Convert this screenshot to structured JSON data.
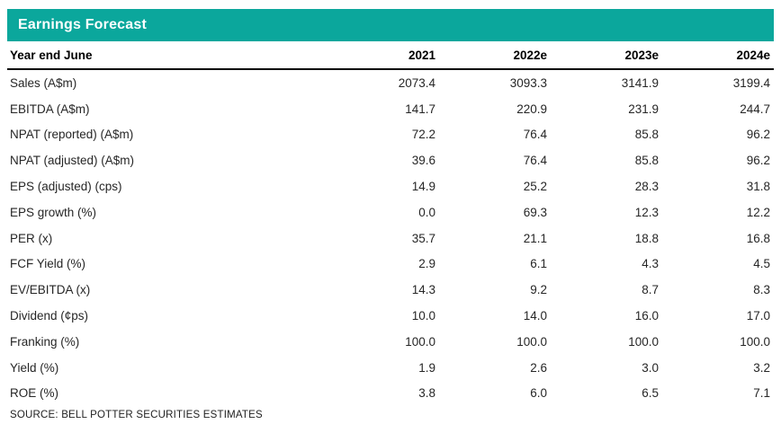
{
  "panel": {
    "title": "Earnings Forecast",
    "source": "SOURCE: BELL POTTER SECURITIES ESTIMATES",
    "accent_color": "#0ba79c",
    "header_rule_color": "#000000"
  },
  "table": {
    "header": {
      "label": "Year end June",
      "columns": [
        "2021",
        "2022e",
        "2023e",
        "2024e"
      ]
    },
    "rows": [
      {
        "label": "Sales (A$m)",
        "values": [
          "2073.4",
          "3093.3",
          "3141.9",
          "3199.4"
        ]
      },
      {
        "label": "EBITDA (A$m)",
        "values": [
          "141.7",
          "220.9",
          "231.9",
          "244.7"
        ]
      },
      {
        "label": "NPAT (reported) (A$m)",
        "values": [
          "72.2",
          "76.4",
          "85.8",
          "96.2"
        ]
      },
      {
        "label": "NPAT (adjusted) (A$m)",
        "values": [
          "39.6",
          "76.4",
          "85.8",
          "96.2"
        ]
      },
      {
        "label": "EPS (adjusted) (cps)",
        "values": [
          "14.9",
          "25.2",
          "28.3",
          "31.8"
        ]
      },
      {
        "label": "EPS growth (%)",
        "values": [
          "0.0",
          "69.3",
          "12.3",
          "12.2"
        ]
      },
      {
        "label": "PER (x)",
        "values": [
          "35.7",
          "21.1",
          "18.8",
          "16.8"
        ]
      },
      {
        "label": "FCF Yield (%)",
        "values": [
          "2.9",
          "6.1",
          "4.3",
          "4.5"
        ]
      },
      {
        "label": "EV/EBITDA (x)",
        "values": [
          "14.3",
          "9.2",
          "8.7",
          "8.3"
        ]
      },
      {
        "label": "Dividend (¢ps)",
        "values": [
          "10.0",
          "14.0",
          "16.0",
          "17.0"
        ]
      },
      {
        "label": "Franking (%)",
        "values": [
          "100.0",
          "100.0",
          "100.0",
          "100.0"
        ]
      },
      {
        "label": "Yield (%)",
        "values": [
          "1.9",
          "2.6",
          "3.0",
          "3.2"
        ]
      },
      {
        "label": "ROE (%)",
        "values": [
          "3.8",
          "6.0",
          "6.5",
          "7.1"
        ]
      }
    ]
  },
  "chart_data": {
    "type": "table",
    "title": "Earnings Forecast",
    "categories": [
      "2021",
      "2022e",
      "2023e",
      "2024e"
    ],
    "series": [
      {
        "name": "Sales (A$m)",
        "values": [
          2073.4,
          3093.3,
          3141.9,
          3199.4
        ]
      },
      {
        "name": "EBITDA (A$m)",
        "values": [
          141.7,
          220.9,
          231.9,
          244.7
        ]
      },
      {
        "name": "NPAT (reported) (A$m)",
        "values": [
          72.2,
          76.4,
          85.8,
          96.2
        ]
      },
      {
        "name": "NPAT (adjusted) (A$m)",
        "values": [
          39.6,
          76.4,
          85.8,
          96.2
        ]
      },
      {
        "name": "EPS (adjusted) (cps)",
        "values": [
          14.9,
          25.2,
          28.3,
          31.8
        ]
      },
      {
        "name": "EPS growth (%)",
        "values": [
          0.0,
          69.3,
          12.3,
          12.2
        ]
      },
      {
        "name": "PER (x)",
        "values": [
          35.7,
          21.1,
          18.8,
          16.8
        ]
      },
      {
        "name": "FCF Yield (%)",
        "values": [
          2.9,
          6.1,
          4.3,
          4.5
        ]
      },
      {
        "name": "EV/EBITDA (x)",
        "values": [
          14.3,
          9.2,
          8.7,
          8.3
        ]
      },
      {
        "name": "Dividend (¢ps)",
        "values": [
          10.0,
          14.0,
          16.0,
          17.0
        ]
      },
      {
        "name": "Franking (%)",
        "values": [
          100.0,
          100.0,
          100.0,
          100.0
        ]
      },
      {
        "name": "Yield (%)",
        "values": [
          1.9,
          2.6,
          3.0,
          3.2
        ]
      },
      {
        "name": "ROE (%)",
        "values": [
          3.8,
          6.0,
          6.5,
          7.1
        ]
      }
    ]
  }
}
